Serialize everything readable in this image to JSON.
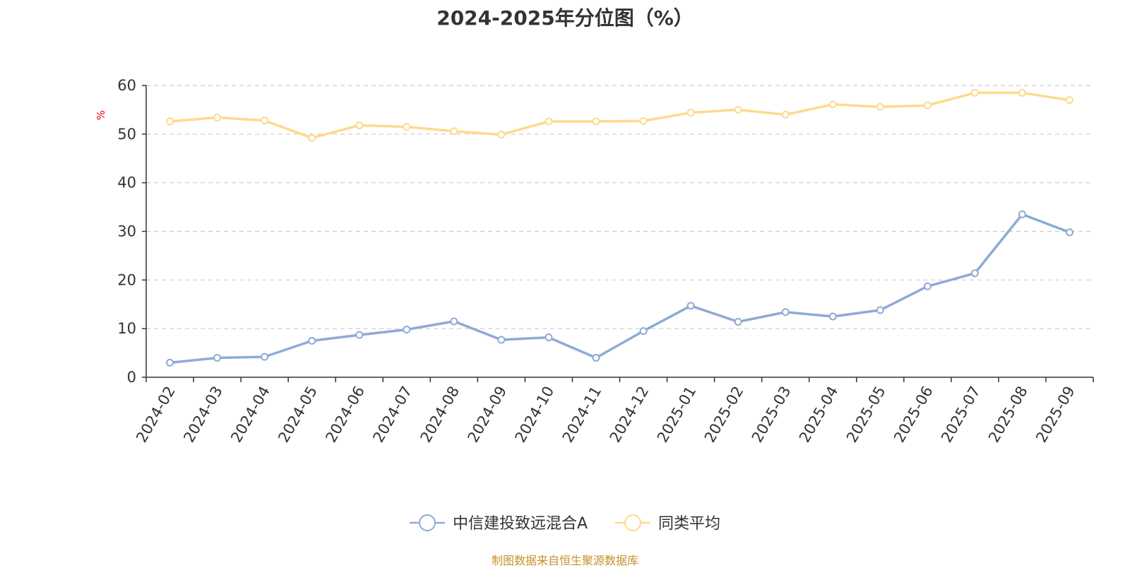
{
  "title": "2024-2025年分位图（%）",
  "source_note": "制图数据来自恒生聚源数据库",
  "colors": {
    "series_a": "#8eaad6",
    "series_b": "#ffd98e",
    "grid": "#cccccc",
    "axis": "#333333",
    "unit": "#ff0000",
    "source": "#c8902a"
  },
  "chart_data": {
    "type": "line",
    "ylabel": "%",
    "ylim": [
      0,
      60
    ],
    "yticks": [
      0,
      10,
      20,
      30,
      40,
      50,
      60
    ],
    "grid": true,
    "legend_position": "bottom-center",
    "categories": [
      "2024-02",
      "2024-03",
      "2024-04",
      "2024-05",
      "2024-06",
      "2024-07",
      "2024-08",
      "2024-09",
      "2024-10",
      "2024-11",
      "2024-12",
      "2025-01",
      "2025-02",
      "2025-03",
      "2025-04",
      "2025-05",
      "2025-06",
      "2025-07",
      "2025-08",
      "2025-09"
    ],
    "series": [
      {
        "name": "中信建投致远混合A",
        "color": "#8eaad6",
        "values": [
          3.0,
          4.0,
          4.2,
          7.5,
          8.7,
          9.8,
          11.5,
          7.7,
          8.2,
          4.0,
          9.5,
          14.7,
          11.4,
          13.4,
          12.5,
          13.8,
          18.7,
          21.4,
          33.5,
          29.8
        ]
      },
      {
        "name": "同类平均",
        "color": "#ffd98e",
        "values": [
          52.6,
          53.4,
          52.8,
          49.2,
          51.8,
          51.5,
          50.6,
          49.9,
          52.6,
          52.6,
          52.7,
          54.4,
          55.0,
          54.0,
          56.1,
          55.6,
          55.9,
          58.5,
          58.5,
          57.0
        ]
      }
    ]
  }
}
